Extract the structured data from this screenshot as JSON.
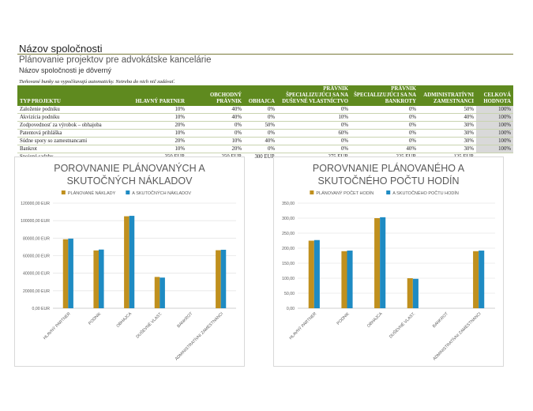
{
  "header": {
    "company_name": "Názov spoločnosti",
    "subtitle": "Plánovanie projektov pre advokátske kancelárie",
    "confidential": "Názov spoločnosti je dôverný",
    "note": "Tieňované bunky sa vypočítavajú automaticky. Netreba do nich nič zadávať."
  },
  "table": {
    "headers": [
      "TYP PROJEKTU",
      "HLAVNÝ PARTNER",
      "OBCHODNÝ PRÁVNIK",
      "OBHAJCA",
      "PRÁVNIK ŠPECIALIZUJÚCI SA NA DUŠEVNÉ VLASTNÍCTVO",
      "PRÁVNIK ŠPECIALIZUJÚCI SA NA BANKROTY",
      "ADMINISTRATÍVNI ZAMESTNANCI",
      "CELKOVÁ HODNOTA"
    ],
    "rows": [
      [
        "Založenie podniku",
        "10%",
        "40%",
        "0%",
        "0%",
        "0%",
        "50%",
        "100%"
      ],
      [
        "Akvizícia podniku",
        "10%",
        "40%",
        "0%",
        "10%",
        "0%",
        "40%",
        "100%"
      ],
      [
        "Zodpovednosť za výrobok – obhajoba",
        "20%",
        "0%",
        "50%",
        "0%",
        "0%",
        "30%",
        "100%"
      ],
      [
        "Patentová prihláška",
        "10%",
        "0%",
        "0%",
        "60%",
        "0%",
        "30%",
        "100%"
      ],
      [
        "Súdne spory so zamestnancami",
        "20%",
        "10%",
        "40%",
        "0%",
        "0%",
        "30%",
        "100%"
      ],
      [
        "Bankrot",
        "10%",
        "20%",
        "0%",
        "0%",
        "40%",
        "30%",
        "100%"
      ]
    ],
    "rates": [
      "Spojené sadzby",
      "350 EUR",
      "250 EUR",
      "300 EUR",
      "275 EUR",
      "225 EUR",
      "125 EUR",
      ""
    ]
  },
  "colors": {
    "planned": "#c0901e",
    "actual": "#1e8bc3",
    "header_bg": "#5f8a1f"
  },
  "chart_data": [
    {
      "type": "bar",
      "title_lines": [
        "POROVNANIE PLÁNOVANÝCH A",
        "SKUTOČNÝCH NÁKLADOV"
      ],
      "categories": [
        "HLAVNÝ PARTNER",
        "PODNIK",
        "OBHAJCA",
        "DUŠEVNÉ VLAST.",
        "BANKROT",
        "ADMINISTRATÍVNI ZAMESTNANCI"
      ],
      "series": [
        {
          "name": "PLÁNOVANÉ NÁKLADY",
          "values": [
            78750,
            66000,
            105000,
            35750,
            0,
            66250
          ]
        },
        {
          "name": "A SKUTOČNÝCH NÁKLADOV",
          "values": [
            79500,
            67000,
            105500,
            35000,
            0,
            66750
          ]
        }
      ],
      "yticks": [
        "0,00 EUR",
        "20000,00 EUR",
        "40000,00 EUR",
        "60000,00 EUR",
        "80000,00 EUR",
        "100000,00 EUR",
        "120000,00 EUR"
      ],
      "ylim": [
        0,
        120000
      ],
      "grid": true,
      "legend": "top"
    },
    {
      "type": "bar",
      "title_lines": [
        "POROVNANIE PLÁNOVANÉHO A",
        "SKUTOČNÉHO POČTU HODÍN"
      ],
      "categories": [
        "HLAVNÝ PARTNER",
        "PODNIK",
        "OBHAJCA",
        "DUŠEVNÉ VLAST.",
        "BANKROT",
        "ADMINISTRATÍVNI ZAMESTNANCI"
      ],
      "series": [
        {
          "name": "PLÁNOVANÝ POČET HODÍN",
          "values": [
            225,
            190,
            300,
            100,
            0,
            190
          ]
        },
        {
          "name": "A SKUTOČNÉHO POČTU HODÍN",
          "values": [
            227,
            192,
            303,
            98,
            0,
            192
          ]
        }
      ],
      "yticks": [
        "0,00",
        "50,00",
        "100,00",
        "150,00",
        "200,00",
        "250,00",
        "300,00",
        "350,00"
      ],
      "ylim": [
        0,
        350
      ],
      "grid": true,
      "legend": "top"
    }
  ]
}
